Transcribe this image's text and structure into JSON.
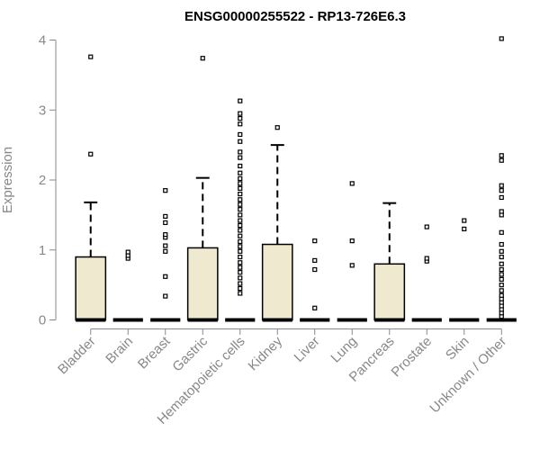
{
  "chart_data": {
    "type": "box",
    "title": "ENSG00000255522 - RP13-726E6.3",
    "xlabel": "",
    "ylabel": "Expression",
    "ylim": [
      0,
      4
    ],
    "yticks": [
      0,
      1,
      2,
      3,
      4
    ],
    "box_fill": "#efe9d0",
    "categories": [
      "Bladder",
      "Brain",
      "Breast",
      "Gastric",
      "Hematopoietic cells",
      "Kidney",
      "Liver",
      "Lung",
      "Pancreas",
      "Prostate",
      "Skin",
      "Unknown / Other"
    ],
    "boxes": [
      {
        "min": 0,
        "q1": 0,
        "median": 0,
        "q3": 0.9,
        "whisker_high": 1.68,
        "outliers": [
          2.37,
          3.76
        ]
      },
      {
        "min": 0,
        "q1": 0,
        "median": 0,
        "q3": 0,
        "whisker_high": 0,
        "outliers": [
          0.88,
          0.92,
          0.97
        ]
      },
      {
        "min": 0,
        "q1": 0,
        "median": 0,
        "q3": 0,
        "whisker_high": 0,
        "outliers": [
          0.34,
          0.62,
          0.98,
          1.06,
          1.18,
          1.22,
          1.39,
          1.48,
          1.85
        ]
      },
      {
        "min": 0,
        "q1": 0,
        "median": 0,
        "q3": 1.03,
        "whisker_high": 2.03,
        "outliers": [
          3.74
        ]
      },
      {
        "min": 0,
        "q1": 0,
        "median": 0,
        "q3": 0,
        "whisker_high": 0,
        "outliers": [
          0.38,
          0.45,
          0.52,
          0.6,
          0.68,
          0.75,
          0.82,
          0.9,
          0.98,
          1.05,
          1.12,
          1.2,
          1.28,
          1.35,
          1.42,
          1.5,
          1.58,
          1.65,
          1.72,
          1.8,
          1.88,
          1.95,
          2.02,
          2.1,
          2.2,
          2.32,
          2.4,
          2.55,
          2.65,
          2.8,
          2.88,
          2.95,
          3.13
        ]
      },
      {
        "min": 0,
        "q1": 0,
        "median": 0,
        "q3": 1.08,
        "whisker_high": 2.5,
        "outliers": [
          2.75
        ]
      },
      {
        "min": 0,
        "q1": 0,
        "median": 0,
        "q3": 0,
        "whisker_high": 0,
        "outliers": [
          0.17,
          0.72,
          0.85,
          1.13
        ]
      },
      {
        "min": 0,
        "q1": 0,
        "median": 0,
        "q3": 0,
        "whisker_high": 0,
        "outliers": [
          0.78,
          1.13,
          1.95
        ]
      },
      {
        "min": 0,
        "q1": 0,
        "median": 0,
        "q3": 0.8,
        "whisker_high": 1.67,
        "outliers": []
      },
      {
        "min": 0,
        "q1": 0,
        "median": 0,
        "q3": 0,
        "whisker_high": 0,
        "outliers": [
          0.84,
          0.88,
          1.33
        ]
      },
      {
        "min": 0,
        "q1": 0,
        "median": 0,
        "q3": 0,
        "whisker_high": 0,
        "outliers": [
          1.3,
          1.42
        ]
      },
      {
        "min": 0,
        "q1": 0,
        "median": 0,
        "q3": 0,
        "whisker_high": 0,
        "outliers": [
          0.05,
          0.1,
          0.15,
          0.2,
          0.25,
          0.3,
          0.35,
          0.42,
          0.5,
          0.58,
          0.65,
          0.72,
          0.8,
          0.9,
          0.98,
          1.08,
          1.25,
          1.5,
          1.55,
          1.75,
          1.85,
          1.92,
          2.28,
          2.35,
          4.02
        ]
      }
    ]
  }
}
